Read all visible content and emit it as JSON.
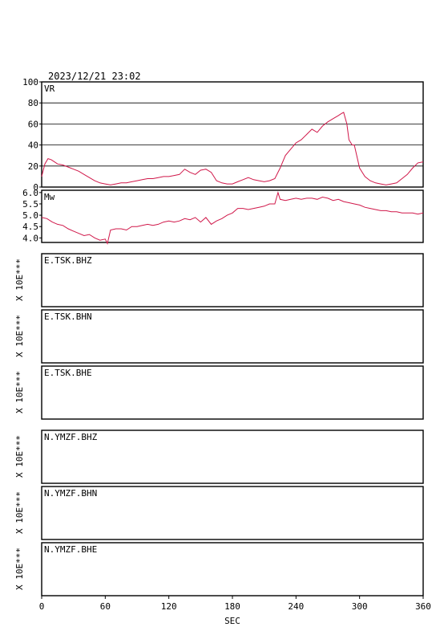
{
  "header": {
    "datetime": "2023/12/21 23:02"
  },
  "colors": {
    "trace": "#d0184a",
    "frame": "#000000",
    "background": "#ffffff"
  },
  "chart_data": [
    {
      "type": "line",
      "title": "VR",
      "ylim": [
        0,
        100
      ],
      "yticks": [
        "100",
        "80",
        "60",
        "40",
        "20",
        "0"
      ],
      "grid": true,
      "x": [
        0,
        3,
        6,
        9,
        12,
        15,
        20,
        25,
        30,
        35,
        40,
        45,
        50,
        55,
        60,
        65,
        70,
        75,
        80,
        85,
        90,
        95,
        100,
        105,
        110,
        115,
        120,
        125,
        130,
        135,
        140,
        145,
        150,
        155,
        160,
        165,
        170,
        175,
        180,
        185,
        190,
        195,
        200,
        205,
        210,
        215,
        220,
        225,
        230,
        235,
        240,
        245,
        250,
        255,
        260,
        265,
        270,
        275,
        280,
        283,
        285,
        288,
        290,
        293,
        295,
        300,
        305,
        310,
        315,
        320,
        325,
        330,
        335,
        340,
        345,
        350,
        355,
        360
      ],
      "y": [
        10,
        22,
        27,
        26,
        24,
        22,
        21,
        19,
        17,
        15,
        12,
        9,
        6,
        4,
        3,
        2,
        3,
        4,
        4,
        5,
        6,
        7,
        8,
        8,
        9,
        10,
        10,
        11,
        12,
        17,
        14,
        12,
        16,
        17,
        14,
        6,
        4,
        3,
        3,
        5,
        7,
        9,
        7,
        6,
        5,
        6,
        8,
        18,
        30,
        36,
        42,
        45,
        50,
        55,
        52,
        58,
        62,
        65,
        68,
        70,
        71,
        60,
        45,
        40,
        40,
        18,
        10,
        6,
        4,
        3,
        2,
        3,
        4,
        8,
        12,
        18,
        23,
        24
      ]
    },
    {
      "type": "line",
      "title": "Mw",
      "ylim": [
        3.8,
        6.1
      ],
      "yticks": [
        "6.0",
        "5.5",
        "5.0",
        "4.5",
        "4.0"
      ],
      "grid": false,
      "x": [
        0,
        5,
        10,
        15,
        20,
        25,
        30,
        35,
        40,
        45,
        50,
        55,
        60,
        62,
        65,
        70,
        75,
        80,
        85,
        90,
        95,
        100,
        105,
        110,
        115,
        120,
        125,
        130,
        135,
        140,
        145,
        150,
        155,
        160,
        165,
        170,
        175,
        180,
        185,
        190,
        195,
        200,
        205,
        210,
        215,
        220,
        223,
        225,
        230,
        235,
        240,
        245,
        250,
        255,
        260,
        265,
        270,
        275,
        280,
        285,
        290,
        295,
        300,
        305,
        310,
        315,
        320,
        325,
        330,
        335,
        340,
        345,
        350,
        355,
        360
      ],
      "y": [
        4.9,
        4.85,
        4.7,
        4.6,
        4.55,
        4.4,
        4.3,
        4.2,
        4.1,
        4.15,
        4.0,
        3.9,
        3.95,
        3.75,
        4.35,
        4.4,
        4.4,
        4.35,
        4.5,
        4.5,
        4.55,
        4.6,
        4.55,
        4.6,
        4.7,
        4.75,
        4.7,
        4.75,
        4.85,
        4.8,
        4.9,
        4.7,
        4.9,
        4.6,
        4.75,
        4.85,
        5.0,
        5.1,
        5.3,
        5.3,
        5.25,
        5.3,
        5.35,
        5.4,
        5.5,
        5.5,
        6.0,
        5.7,
        5.65,
        5.7,
        5.75,
        5.7,
        5.75,
        5.75,
        5.7,
        5.8,
        5.75,
        5.65,
        5.7,
        5.6,
        5.55,
        5.5,
        5.45,
        5.35,
        5.3,
        5.25,
        5.2,
        5.2,
        5.15,
        5.15,
        5.1,
        5.1,
        5.1,
        5.05,
        5.1
      ]
    }
  ],
  "waveforms": [
    {
      "station": "E.TSK.BHZ",
      "scale": "X 10E***"
    },
    {
      "station": "E.TSK.BHN",
      "scale": "X 10E***"
    },
    {
      "station": "E.TSK.BHE",
      "scale": "X 10E***"
    },
    {
      "station": "N.YMZF.BHZ",
      "scale": "X 10E***"
    },
    {
      "station": "N.YMZF.BHN",
      "scale": "X 10E***"
    },
    {
      "station": "N.YMZF.BHE",
      "scale": "X 10E***"
    }
  ],
  "x_axis": {
    "label": "SEC",
    "range": [
      0,
      360
    ],
    "ticks": [
      "0",
      "60",
      "120",
      "180",
      "240",
      "300",
      "360"
    ]
  }
}
